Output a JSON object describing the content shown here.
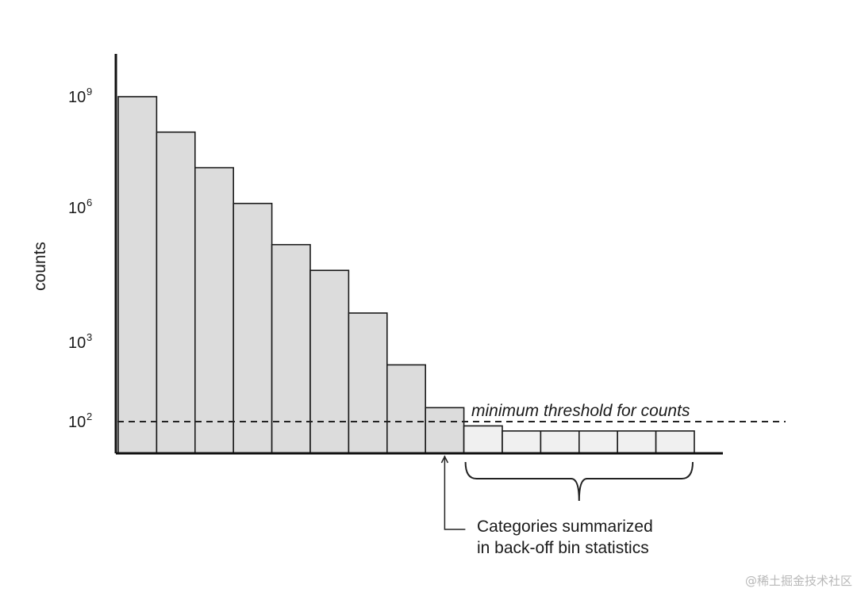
{
  "chart_data": {
    "type": "bar",
    "ylabel": "counts",
    "yscale": "log",
    "ylim": [
      30,
      10000000000.0
    ],
    "y_ticks": [
      {
        "base": "10",
        "exp": "9",
        "value": 1000000000.0
      },
      {
        "base": "10",
        "exp": "6",
        "value": 1000000.0
      },
      {
        "base": "10",
        "exp": "3",
        "value": 1000.0
      },
      {
        "base": "10",
        "exp": "2",
        "value": 100.0
      }
    ],
    "values": [
      1000000000.0,
      110000000.0,
      12000000.0,
      1300000.0,
      150000.0,
      40000.0,
      4500.0,
      520,
      150,
      85,
      70,
      70,
      70,
      70,
      70
    ],
    "highlighted_index": 8,
    "threshold": {
      "value": 100,
      "label": "minimum threshold for counts"
    },
    "annotation": [
      "Categories summarized",
      "in back-off bin statistics"
    ],
    "bracket_indices": [
      9,
      14
    ],
    "grid": false,
    "legend": "none"
  },
  "watermark": "@稀土掘金技术社区",
  "colors": {
    "bar_fill": "#dcdcdc",
    "small_bar_fill": "#f0f0f0",
    "highlight_center": "#ffffff",
    "highlight_edge": "#8c8c8c",
    "stroke": "#1a1a1a"
  }
}
